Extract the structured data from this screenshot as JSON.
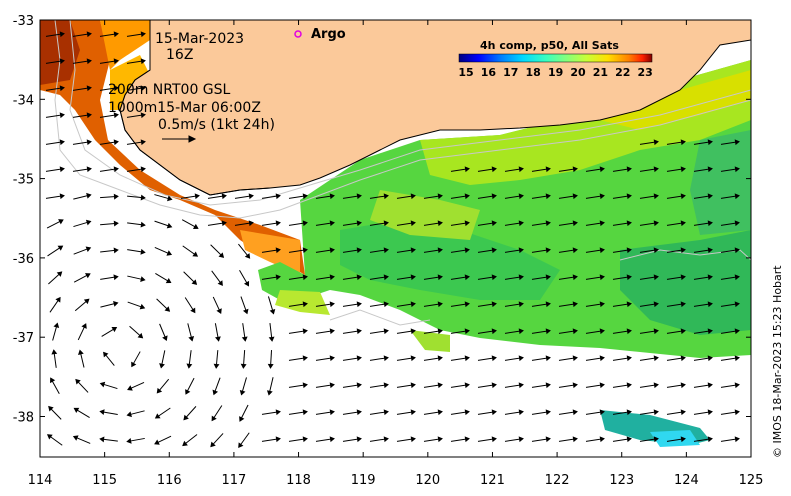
{
  "map": {
    "x_ticks": [
      "114",
      "115",
      "116",
      "117",
      "118",
      "119",
      "120",
      "121",
      "122",
      "123",
      "124",
      "125"
    ],
    "y_ticks": [
      "-33",
      "-34",
      "-35",
      "-36",
      "-37",
      "-38"
    ],
    "date_label": "15-Mar-2023",
    "time_label": "16Z",
    "depth_line_1": "200m  NRT00 GSL",
    "depth_line_2": "1000m15-Mar 06:00Z",
    "scale_label": "0.5m/s (1kt 24h)",
    "argo_label": "Argo",
    "credit": "© IMOS 18-Mar-2023 15:23 Hobart",
    "colors": {
      "land": "#fbc99a",
      "coast": "#000000",
      "contour": "#c8c8c8",
      "argo_marker": "#e000e0"
    }
  },
  "colorbar": {
    "title": "4h comp, p50, All Sats",
    "ticks": [
      "15",
      "16",
      "17",
      "18",
      "19",
      "20",
      "21",
      "22",
      "23"
    ],
    "colors": [
      "#00007f",
      "#0000ff",
      "#0080ff",
      "#00d8ff",
      "#38ffc0",
      "#80ff80",
      "#c8ff38",
      "#ffe000",
      "#ff8000",
      "#ff2000",
      "#7f0000"
    ]
  }
}
